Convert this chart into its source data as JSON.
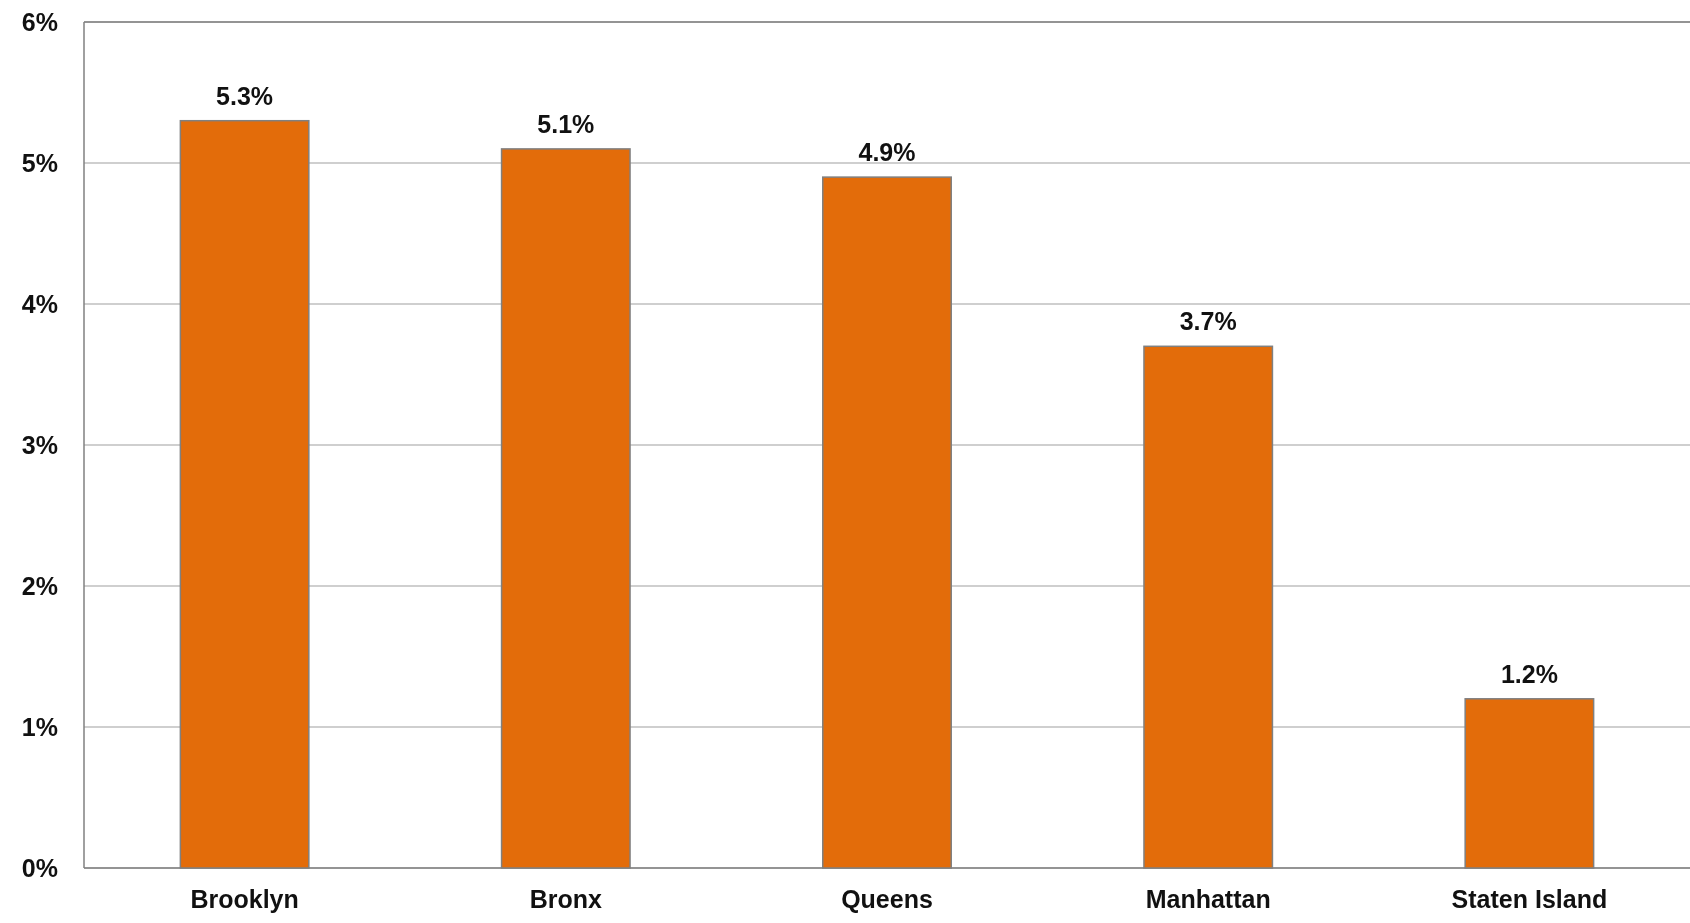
{
  "chart_data": {
    "type": "bar",
    "categories": [
      "Brooklyn",
      "Bronx",
      "Queens",
      "Manhattan",
      "Staten Island"
    ],
    "values": [
      5.3,
      5.1,
      4.9,
      3.7,
      1.2
    ],
    "value_labels": [
      "5.3%",
      "5.1%",
      "4.9%",
      "3.7%",
      "1.2%"
    ],
    "color": "#e36c0a",
    "ylim": [
      0,
      6
    ],
    "yticks": [
      {
        "value": 0,
        "label": "0%"
      },
      {
        "value": 1,
        "label": "1%"
      },
      {
        "value": 2,
        "label": "2%"
      },
      {
        "value": 3,
        "label": "3%"
      },
      {
        "value": 4,
        "label": "4%"
      },
      {
        "value": 5,
        "label": "5%"
      },
      {
        "value": 6,
        "label": "6%"
      }
    ],
    "grid": "y"
  }
}
